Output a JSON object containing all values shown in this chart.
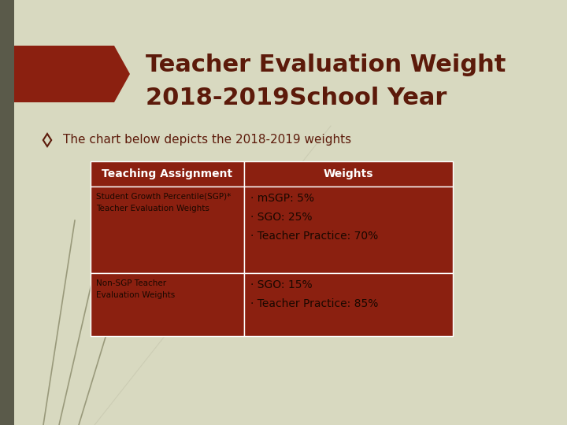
{
  "title_line1": "Teacher Evaluation Weight",
  "title_line2": "2018-2019School Year",
  "subtitle": "The chart below depicts the 2018-2019 weights",
  "bg_color": "#d8d9c0",
  "title_color": "#5c1a0a",
  "header_bg": "#8b2010",
  "header_text_color": "#ffffff",
  "cell_bg": "#8b2010",
  "cell_text_color": "#1a0800",
  "col1_header": "Teaching Assignment",
  "col2_header": "Weights",
  "row1_col1": "Student Growth Percentile(SGP)*\nTeacher Evaluation Weights",
  "row1_col2": "· mSGP: 5%\n· SGO: 25%\n· Teacher Practice: 70%",
  "row2_col1": "Non-SGP Teacher\nEvaluation Weights",
  "row2_col2": "· SGO: 15%\n· Teacher Practice: 85%",
  "arrow_color": "#8b2010",
  "left_bar_color": "#5a5a4a",
  "diamond_color": "#5c1a0a"
}
